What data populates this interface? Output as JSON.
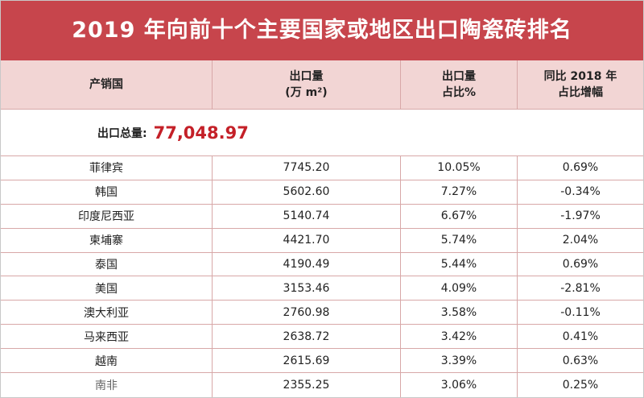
{
  "title": "2019 年向前十个主要国家或地区出口陶瓷砖排名",
  "headers": {
    "col1": "产销国",
    "col2_line1": "出口量",
    "col2_line2": "(万 m²)",
    "col3_line1": "出口量",
    "col3_line2": "占比%",
    "col4_line1": "同比 2018 年",
    "col4_line2": "占比增幅"
  },
  "total": {
    "label": "出口总量:",
    "value": "77,048.97"
  },
  "rows": [
    {
      "country": "菲律宾",
      "volume": "7745.20",
      "share": "10.05%",
      "change": "0.69%"
    },
    {
      "country": "韩国",
      "volume": "5602.60",
      "share": "7.27%",
      "change": "-0.34%"
    },
    {
      "country": "印度尼西亚",
      "volume": "5140.74",
      "share": "6.67%",
      "change": "-1.97%"
    },
    {
      "country": "柬埔寨",
      "volume": "4421.70",
      "share": "5.74%",
      "change": "2.04%"
    },
    {
      "country": "泰国",
      "volume": "4190.49",
      "share": "5.44%",
      "change": "0.69%"
    },
    {
      "country": "美国",
      "volume": "3153.46",
      "share": "4.09%",
      "change": "-2.81%"
    },
    {
      "country": "澳大利亚",
      "volume": "2760.98",
      "share": "3.58%",
      "change": "-0.11%"
    },
    {
      "country": "马来西亚",
      "volume": "2638.72",
      "share": "3.42%",
      "change": "0.41%"
    },
    {
      "country": "越南",
      "volume": "2615.69",
      "share": "3.39%",
      "change": "0.63%"
    },
    {
      "country": "南非",
      "volume": "2355.25",
      "share": "3.06%",
      "change": "0.25%"
    }
  ],
  "colors": {
    "title_bg": "#c7454c",
    "header_bg": "#f2d5d4",
    "total_value": "#c42028"
  }
}
